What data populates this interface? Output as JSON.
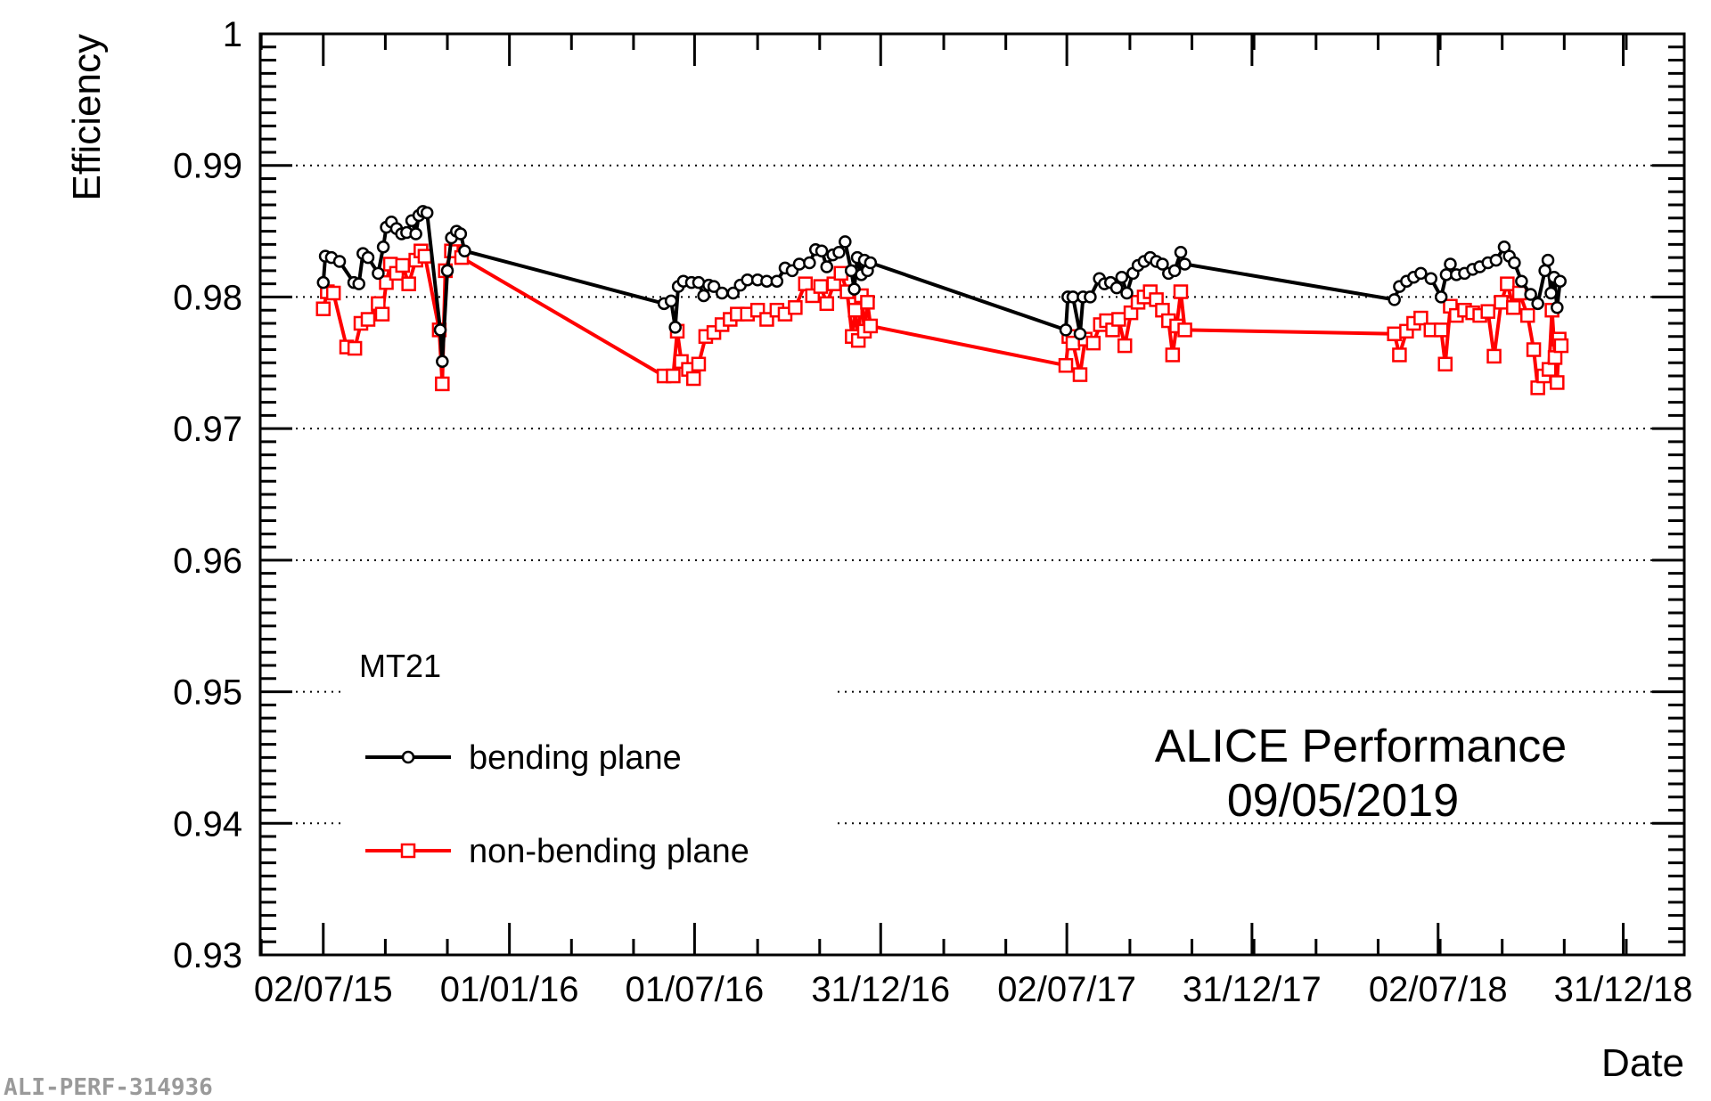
{
  "chart_data": {
    "type": "line",
    "ylabel": "Efficiency",
    "xlabel": "Date",
    "ylim": [
      0.93,
      1.0
    ],
    "yticks": [
      {
        "value": 0.93,
        "label": "0.93"
      },
      {
        "value": 0.94,
        "label": "0.94"
      },
      {
        "value": 0.95,
        "label": "0.95"
      },
      {
        "value": 0.96,
        "label": "0.96"
      },
      {
        "value": 0.97,
        "label": "0.97"
      },
      {
        "value": 0.98,
        "label": "0.98"
      },
      {
        "value": 0.99,
        "label": "0.99"
      },
      {
        "value": 1.0,
        "label": "1"
      }
    ],
    "xlim": [
      "2015-05-01",
      "2019-03-01"
    ],
    "xticks": [
      {
        "date": "2015-07-02",
        "label": "02/07/15"
      },
      {
        "date": "2016-01-01",
        "label": "01/01/16"
      },
      {
        "date": "2016-07-01",
        "label": "01/07/16"
      },
      {
        "date": "2016-12-31",
        "label": "31/12/16"
      },
      {
        "date": "2017-07-02",
        "label": "02/07/17"
      },
      {
        "date": "2017-12-31",
        "label": "31/12/17"
      },
      {
        "date": "2018-07-02",
        "label": "02/07/18"
      },
      {
        "date": "2018-12-31",
        "label": "31/12/18"
      }
    ],
    "grid": "horizontal dotted",
    "legend": {
      "header": "MT21",
      "placement": "bottom-left"
    },
    "annotation": {
      "line1": "ALICE Performance",
      "line2": "09/05/2019"
    },
    "series": [
      {
        "name": "bending plane",
        "color": "#000000",
        "marker": "open-circle",
        "points": [
          [
            "2015-07-02",
            0.9811
          ],
          [
            "2015-07-04",
            0.9831
          ],
          [
            "2015-07-10",
            0.983
          ],
          [
            "2015-07-18",
            0.9827
          ],
          [
            "2015-08-01",
            0.9811
          ],
          [
            "2015-08-06",
            0.981
          ],
          [
            "2015-08-10",
            0.9833
          ],
          [
            "2015-08-15",
            0.983
          ],
          [
            "2015-08-25",
            0.9818
          ],
          [
            "2015-08-30",
            0.9838
          ],
          [
            "2015-09-02",
            0.9853
          ],
          [
            "2015-09-07",
            0.9857
          ],
          [
            "2015-09-12",
            0.9852
          ],
          [
            "2015-09-17",
            0.9848
          ],
          [
            "2015-09-22",
            0.9849
          ],
          [
            "2015-09-27",
            0.9858
          ],
          [
            "2015-10-01",
            0.9848
          ],
          [
            "2015-10-04",
            0.9862
          ],
          [
            "2015-10-08",
            0.9865
          ],
          [
            "2015-10-12",
            0.9864
          ],
          [
            "2015-10-25",
            0.9775
          ],
          [
            "2015-10-27",
            0.9751
          ],
          [
            "2015-11-01",
            0.982
          ],
          [
            "2015-11-05",
            0.9845
          ],
          [
            "2015-11-10",
            0.985
          ],
          [
            "2015-11-14",
            0.9848
          ],
          [
            "2015-11-18",
            0.9835
          ],
          [
            "2016-06-01",
            0.9795
          ],
          [
            "2016-06-08",
            0.9797
          ],
          [
            "2016-06-12",
            0.9777
          ],
          [
            "2016-06-15",
            0.9808
          ],
          [
            "2016-06-20",
            0.9812
          ],
          [
            "2016-06-28",
            0.9811
          ],
          [
            "2016-07-05",
            0.9811
          ],
          [
            "2016-07-10",
            0.9801
          ],
          [
            "2016-07-15",
            0.9809
          ],
          [
            "2016-07-20",
            0.9808
          ],
          [
            "2016-07-28",
            0.9803
          ],
          [
            "2016-08-08",
            0.9803
          ],
          [
            "2016-08-15",
            0.9809
          ],
          [
            "2016-08-22",
            0.9813
          ],
          [
            "2016-09-01",
            0.9813
          ],
          [
            "2016-09-10",
            0.9812
          ],
          [
            "2016-09-20",
            0.9812
          ],
          [
            "2016-09-28",
            0.9822
          ],
          [
            "2016-10-05",
            0.982
          ],
          [
            "2016-10-12",
            0.9825
          ],
          [
            "2016-10-22",
            0.9826
          ],
          [
            "2016-10-28",
            0.9836
          ],
          [
            "2016-11-03",
            0.9835
          ],
          [
            "2016-11-08",
            0.9823
          ],
          [
            "2016-11-14",
            0.9832
          ],
          [
            "2016-11-20",
            0.9834
          ],
          [
            "2016-11-26",
            0.9842
          ],
          [
            "2016-12-02",
            0.982
          ],
          [
            "2016-12-05",
            0.9806
          ],
          [
            "2016-12-08",
            0.983
          ],
          [
            "2016-12-12",
            0.9817
          ],
          [
            "2016-12-15",
            0.9828
          ],
          [
            "2016-12-18",
            0.982
          ],
          [
            "2016-12-21",
            0.9826
          ],
          [
            "2017-07-01",
            0.9775
          ],
          [
            "2017-07-03",
            0.98
          ],
          [
            "2017-07-08",
            0.98
          ],
          [
            "2017-07-15",
            0.9772
          ],
          [
            "2017-07-18",
            0.98
          ],
          [
            "2017-07-25",
            0.98
          ],
          [
            "2017-08-03",
            0.9814
          ],
          [
            "2017-08-08",
            0.981
          ],
          [
            "2017-08-14",
            0.9811
          ],
          [
            "2017-08-20",
            0.9807
          ],
          [
            "2017-08-25",
            0.9815
          ],
          [
            "2017-08-30",
            0.9803
          ],
          [
            "2017-09-05",
            0.9818
          ],
          [
            "2017-09-10",
            0.9824
          ],
          [
            "2017-09-16",
            0.9827
          ],
          [
            "2017-09-22",
            0.983
          ],
          [
            "2017-09-28",
            0.9827
          ],
          [
            "2017-10-04",
            0.9825
          ],
          [
            "2017-10-10",
            0.9818
          ],
          [
            "2017-10-16",
            0.982
          ],
          [
            "2017-10-22",
            0.9834
          ],
          [
            "2017-10-26",
            0.9825
          ],
          [
            "2018-05-20",
            0.9798
          ],
          [
            "2018-05-25",
            0.9808
          ],
          [
            "2018-06-01",
            0.9812
          ],
          [
            "2018-06-08",
            0.9815
          ],
          [
            "2018-06-15",
            0.9818
          ],
          [
            "2018-06-25",
            0.9814
          ],
          [
            "2018-07-05",
            0.98
          ],
          [
            "2018-07-10",
            0.9817
          ],
          [
            "2018-07-14",
            0.9825
          ],
          [
            "2018-07-20",
            0.9817
          ],
          [
            "2018-07-28",
            0.9818
          ],
          [
            "2018-08-05",
            0.9821
          ],
          [
            "2018-08-12",
            0.9823
          ],
          [
            "2018-08-20",
            0.9826
          ],
          [
            "2018-08-28",
            0.9828
          ],
          [
            "2018-09-05",
            0.9838
          ],
          [
            "2018-09-10",
            0.9831
          ],
          [
            "2018-09-15",
            0.9826
          ],
          [
            "2018-09-22",
            0.9812
          ],
          [
            "2018-10-01",
            0.9802
          ],
          [
            "2018-10-08",
            0.9795
          ],
          [
            "2018-10-15",
            0.982
          ],
          [
            "2018-10-18",
            0.9828
          ],
          [
            "2018-10-21",
            0.9803
          ],
          [
            "2018-10-24",
            0.9815
          ],
          [
            "2018-10-27",
            0.9792
          ],
          [
            "2018-10-30",
            0.9812
          ]
        ]
      },
      {
        "name": "non-bending plane",
        "color": "#ff0000",
        "marker": "open-square",
        "points": [
          [
            "2015-07-02",
            0.9791
          ],
          [
            "2015-07-06",
            0.9804
          ],
          [
            "2015-07-12",
            0.9803
          ],
          [
            "2015-07-25",
            0.9762
          ],
          [
            "2015-08-02",
            0.9761
          ],
          [
            "2015-08-08",
            0.978
          ],
          [
            "2015-08-15",
            0.9783
          ],
          [
            "2015-08-25",
            0.9795
          ],
          [
            "2015-08-29",
            0.9787
          ],
          [
            "2015-09-02",
            0.9811
          ],
          [
            "2015-09-06",
            0.9825
          ],
          [
            "2015-09-12",
            0.9818
          ],
          [
            "2015-09-18",
            0.9824
          ],
          [
            "2015-09-24",
            0.981
          ],
          [
            "2015-10-01",
            0.9828
          ],
          [
            "2015-10-06",
            0.9835
          ],
          [
            "2015-10-10",
            0.9831
          ],
          [
            "2015-10-24",
            0.9775
          ],
          [
            "2015-10-27",
            0.9734
          ],
          [
            "2015-10-30",
            0.982
          ],
          [
            "2015-11-05",
            0.9835
          ],
          [
            "2015-11-10",
            0.9844
          ],
          [
            "2015-11-15",
            0.983
          ],
          [
            "2016-06-01",
            0.974
          ],
          [
            "2016-06-10",
            0.974
          ],
          [
            "2016-06-14",
            0.9774
          ],
          [
            "2016-06-18",
            0.9751
          ],
          [
            "2016-06-25",
            0.9745
          ],
          [
            "2016-06-30",
            0.9738
          ],
          [
            "2016-07-05",
            0.9749
          ],
          [
            "2016-07-12",
            0.977
          ],
          [
            "2016-07-20",
            0.9773
          ],
          [
            "2016-07-28",
            0.9779
          ],
          [
            "2016-08-05",
            0.9783
          ],
          [
            "2016-08-12",
            0.9787
          ],
          [
            "2016-08-22",
            0.9787
          ],
          [
            "2016-09-01",
            0.979
          ],
          [
            "2016-09-10",
            0.9783
          ],
          [
            "2016-09-20",
            0.979
          ],
          [
            "2016-09-28",
            0.9787
          ],
          [
            "2016-10-08",
            0.9792
          ],
          [
            "2016-10-18",
            0.981
          ],
          [
            "2016-10-25",
            0.9801
          ],
          [
            "2016-11-02",
            0.9808
          ],
          [
            "2016-11-08",
            0.9795
          ],
          [
            "2016-11-15",
            0.981
          ],
          [
            "2016-11-22",
            0.9818
          ],
          [
            "2016-11-28",
            0.9804
          ],
          [
            "2016-12-03",
            0.977
          ],
          [
            "2016-12-06",
            0.979
          ],
          [
            "2016-12-09",
            0.9767
          ],
          [
            "2016-12-12",
            0.9801
          ],
          [
            "2016-12-15",
            0.9774
          ],
          [
            "2016-12-18",
            0.9796
          ],
          [
            "2016-12-21",
            0.9778
          ],
          [
            "2017-07-01",
            0.9748
          ],
          [
            "2017-07-04",
            0.977
          ],
          [
            "2017-07-08",
            0.9765
          ],
          [
            "2017-07-15",
            0.9741
          ],
          [
            "2017-07-20",
            0.9768
          ],
          [
            "2017-07-28",
            0.9765
          ],
          [
            "2017-08-04",
            0.9779
          ],
          [
            "2017-08-10",
            0.9782
          ],
          [
            "2017-08-16",
            0.9775
          ],
          [
            "2017-08-22",
            0.9783
          ],
          [
            "2017-08-28",
            0.9763
          ],
          [
            "2017-09-03",
            0.9788
          ],
          [
            "2017-09-10",
            0.9796
          ],
          [
            "2017-09-16",
            0.98
          ],
          [
            "2017-09-22",
            0.9804
          ],
          [
            "2017-09-28",
            0.9798
          ],
          [
            "2017-10-04",
            0.979
          ],
          [
            "2017-10-10",
            0.9782
          ],
          [
            "2017-10-14",
            0.9756
          ],
          [
            "2017-10-18",
            0.9778
          ],
          [
            "2017-10-22",
            0.9804
          ],
          [
            "2017-10-26",
            0.9775
          ],
          [
            "2018-05-20",
            0.9772
          ],
          [
            "2018-05-25",
            0.9756
          ],
          [
            "2018-06-01",
            0.9774
          ],
          [
            "2018-06-08",
            0.978
          ],
          [
            "2018-06-15",
            0.9784
          ],
          [
            "2018-06-25",
            0.9775
          ],
          [
            "2018-07-05",
            0.9775
          ],
          [
            "2018-07-09",
            0.9749
          ],
          [
            "2018-07-14",
            0.9793
          ],
          [
            "2018-07-20",
            0.9786
          ],
          [
            "2018-07-28",
            0.979
          ],
          [
            "2018-08-05",
            0.9788
          ],
          [
            "2018-08-12",
            0.9786
          ],
          [
            "2018-08-20",
            0.9789
          ],
          [
            "2018-08-26",
            0.9755
          ],
          [
            "2018-09-02",
            0.9796
          ],
          [
            "2018-09-08",
            0.981
          ],
          [
            "2018-09-14",
            0.9792
          ],
          [
            "2018-09-20",
            0.9803
          ],
          [
            "2018-09-28",
            0.9786
          ],
          [
            "2018-10-04",
            0.976
          ],
          [
            "2018-10-08",
            0.9731
          ],
          [
            "2018-10-14",
            0.974
          ],
          [
            "2018-10-19",
            0.9745
          ],
          [
            "2018-10-22",
            0.979
          ],
          [
            "2018-10-25",
            0.9754
          ],
          [
            "2018-10-27",
            0.9735
          ],
          [
            "2018-10-29",
            0.9768
          ],
          [
            "2018-10-31",
            0.9763
          ]
        ]
      }
    ]
  },
  "footer_id": "ALI-PERF-314936"
}
